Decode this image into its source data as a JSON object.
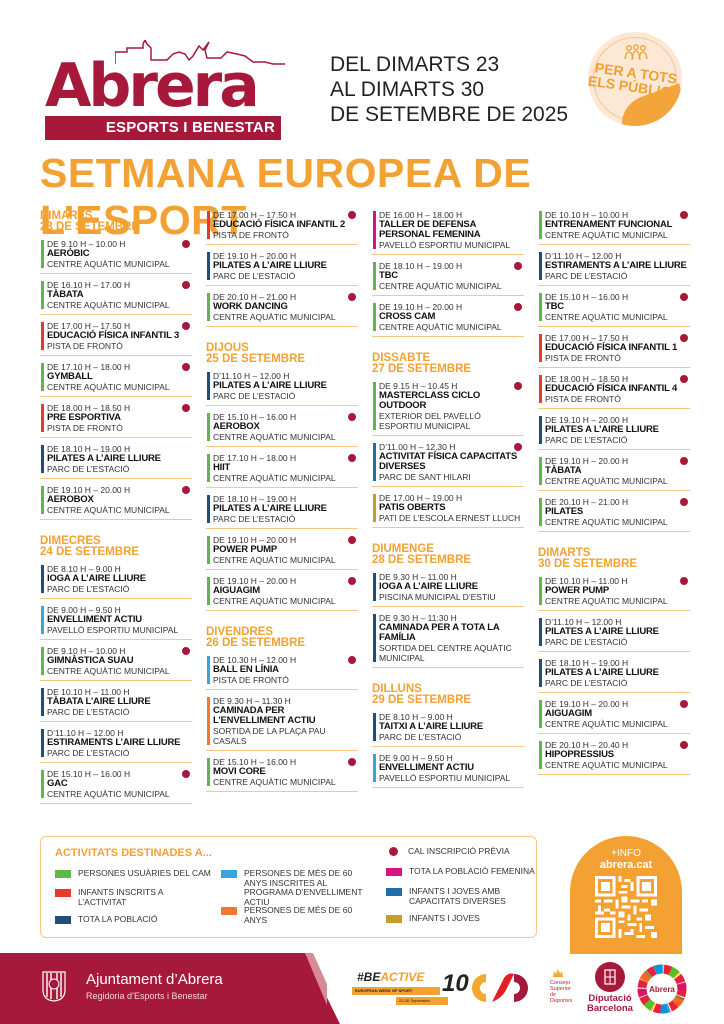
{
  "header": {
    "logo_word": "Abrera",
    "logo_subtitle": "ESPORTS I BENESTAR",
    "dates": [
      "DEL DIMARTS 23",
      "AL DIMARTS 30",
      "DE SETEMBRE DE 2025"
    ],
    "sticker_lines": [
      "PER A TOTS",
      "ELS PÚBLICS"
    ],
    "sticker_icon": "people-group-icon",
    "title": "SETMANA EUROPEA DE L’ESPORT"
  },
  "colors": {
    "brand": "#a6193a",
    "accent": "#f3a132",
    "cam_users": "#5cb947",
    "children_enrolled": "#e8392f",
    "all_population": "#1f4e79",
    "seniors_program": "#3aa4dc",
    "seniors": "#f07832",
    "registration_dot": "#a6193a",
    "women": "#d6127e",
    "diverse_abilities": "#1f6ea8",
    "children_youth": "#c99a2e"
  },
  "columns": [
    {
      "blocks": [
        {
          "day": "DIMARTS",
          "date": "23 DE SETEMBRE",
          "events": [
            {
              "time": "DE 9.10 H – 10.00 H",
              "name": "AERÒBIC",
              "place": "CENTRE AQUÀTIC MUNICIPAL",
              "color": "#5cb947",
              "registration": true
            },
            {
              "time": "DE 16.10 H – 17.00 H",
              "name": "TÀBATA",
              "place": "CENTRE AQUÀTIC MUNICIPAL",
              "color": "#5cb947",
              "registration": true
            },
            {
              "time": "DE 17.00 H – 17.50 H",
              "name": "EDUCACIÓ FÍSICA INFANTIL 3",
              "place": "PISTA DE FRONTÓ",
              "color": "#e8392f",
              "registration": true
            },
            {
              "time": "DE 17.10 H – 18.00 H",
              "name": "GYMBALL",
              "place": "CENTRE AQUÀTIC MUNICIPAL",
              "color": "#5cb947",
              "registration": true
            },
            {
              "time": "DE 18.00 H – 18.50 H",
              "name": "PRE ESPORTIVA",
              "place": "PISTA DE FRONTÓ",
              "color": "#e8392f",
              "registration": true
            },
            {
              "time": "DE 18.10 H – 19.00 H",
              "name": "PILATES A L’AIRE LLIURE",
              "place": "PARC DE L’ESTACIÓ",
              "color": "#1f4e79",
              "registration": false
            },
            {
              "time": "DE 19.10 H – 20.00 H",
              "name": "AEROBOX",
              "place": "CENTRE AQUÀTIC MUNICIPAL",
              "color": "#5cb947",
              "registration": true
            }
          ]
        },
        {
          "day": "DIMECRES",
          "date": "24 DE SETEMBRE",
          "events": [
            {
              "time": "DE 8.10 H – 9.00 H",
              "name": "IOGA A L’AIRE LLIURE",
              "place": "PARC DE L’ESTACIÓ",
              "color": "#1f4e79",
              "registration": false
            },
            {
              "time": "DE 9.00 H – 9.50 H",
              "name": "ENVELLIMENT ACTIU",
              "place": "PAVELLÓ ESPORTIU MUNICIPAL",
              "color": "#3aa4dc",
              "registration": false
            },
            {
              "time": "DE 9.10 H – 10.00 H",
              "name": "GIMNÀSTICA SUAU",
              "place": "CENTRE AQUÀTIC MUNICIPAL",
              "color": "#5cb947",
              "registration": true
            },
            {
              "time": "DE 10.10 H – 11.00 H",
              "name": "TÀBATA L’AIRE LLIURE",
              "place": "PARC DE L’ESTACIÓ",
              "color": "#1f4e79",
              "registration": false
            },
            {
              "time": "D’11.10 H – 12.00 H",
              "name": "ESTIRAMENTS L’AIRE LLIURE",
              "place": "PARC DE L’ESTACIÓ",
              "color": "#1f4e79",
              "registration": false
            },
            {
              "time": "DE 15.10 H – 16.00 H",
              "name": "GAC",
              "place": "CENTRE AQUÀTIC MUNICIPAL",
              "color": "#5cb947",
              "registration": true
            }
          ]
        }
      ]
    },
    {
      "blocks": [
        {
          "day": "",
          "date": "",
          "events": [
            {
              "time": "DE 17.00 H – 17.50 H",
              "name": "EDUCACIÓ FÍSICA INFANTIL 2",
              "place": "PISTA DE FRONTÓ",
              "color": "#e8392f",
              "registration": true
            },
            {
              "time": "DE 19.10 H – 20.00 H",
              "name": "PILATES A L’AIRE LLIURE",
              "place": "PARC DE L’ESTACIÓ",
              "color": "#1f4e79",
              "registration": false
            },
            {
              "time": "DE 20.10 H – 21.00 H",
              "name": "WORK DANCING",
              "place": "CENTRE AQUÀTIC MUNICIPAL",
              "color": "#5cb947",
              "registration": true
            }
          ]
        },
        {
          "day": "DIJOUS",
          "date": "25 DE SETEMBRE",
          "events": [
            {
              "time": "D’11.10 H – 12.00 H",
              "name": "PILATES A L’AIRE LLIURE",
              "place": "PARC DE L’ESTACIÓ",
              "color": "#1f4e79",
              "registration": false
            },
            {
              "time": "DE 15.10 H – 16.00 H",
              "name": "AEROBOX",
              "place": "CENTRE AQUÀTIC MUNICIPAL",
              "color": "#5cb947",
              "registration": true
            },
            {
              "time": "DE 17.10 H – 18.00 H",
              "name": "HIIT",
              "place": "CENTRE AQUÀTIC MUNICIPAL",
              "color": "#5cb947",
              "registration": true
            },
            {
              "time": "DE 18.10 H – 19.00 H",
              "name": "PILATES A L’AIRE LLIURE",
              "place": "PARC DE L’ESTACIÓ",
              "color": "#1f4e79",
              "registration": false
            },
            {
              "time": "DE 19.10 H – 20.00 H",
              "name": "POWER PUMP",
              "place": "CENTRE AQUÀTIC MUNICIPAL",
              "color": "#5cb947",
              "registration": true
            },
            {
              "time": "DE 19.10 H – 20.00 H",
              "name": "AIGUAGIM",
              "place": "CENTRE AQUÀTIC MUNICIPAL",
              "color": "#5cb947",
              "registration": true
            }
          ]
        },
        {
          "day": "DIVENDRES",
          "date": "26 DE SETEMBRE",
          "events": [
            {
              "time": "DE 10.30 H – 12.00 H",
              "name": "BALL EN LÍNIA",
              "place": "PISTA DE FRONTÓ",
              "color": "#3aa4dc",
              "registration": true
            },
            {
              "time": "DE 9.30 H – 11.30 H",
              "name": "CAMINADA PER L’ENVELLIMENT ACTIU",
              "place": "SORTIDA DE LA PLAÇA PAU CASALS",
              "color": "#f07832",
              "registration": false
            },
            {
              "time": "DE 15.10 H – 16.00 H",
              "name": "MOVI CORE",
              "place": "CENTRE AQUÀTIC MUNICIPAL",
              "color": "#5cb947",
              "registration": true
            }
          ]
        }
      ]
    },
    {
      "blocks": [
        {
          "day": "",
          "date": "",
          "events": [
            {
              "time": "DE 16.00 H – 18.00 H",
              "name": "TALLER DE DEFENSA PERSONAL FEMENINA",
              "place": "PAVELLÓ ESPORTIU MUNICIPAL",
              "color": "#d6127e",
              "registration": false
            },
            {
              "time": "DE 18.10 H – 19.00 H",
              "name": "TBC",
              "place": "CENTRE AQUÀTIC MUNICIPAL",
              "color": "#5cb947",
              "registration": true
            },
            {
              "time": "DE 19.10 H – 20.00 H",
              "name": "CROSS CAM",
              "place": "CENTRE AQUÀTIC MUNICIPAL",
              "color": "#5cb947",
              "registration": true
            }
          ]
        },
        {
          "day": "DISSABTE",
          "date": "27 DE SETEMBRE",
          "events": [
            {
              "time": "DE 9.15 H – 10.45 H",
              "name": "MASTERCLASS CICLO OUTDOOR",
              "place": "EXTERIOR DEL PAVELLÓ ESPORTIU MUNICIPAL",
              "color": "#5cb947",
              "registration": true
            },
            {
              "time": "D’11.00 H – 12.30 H",
              "name": "ACTIVITAT FÍSICA CAPACITATS DIVERSES",
              "place": "PARC DE SANT HILARI",
              "color": "#1f6ea8",
              "registration": true
            },
            {
              "time": "DE 17.00 H – 19.00 H",
              "name": "PATIS OBERTS",
              "place": "PATI DE L’ESCOLA ERNEST LLUCH",
              "color": "#c99a2e",
              "registration": false
            }
          ]
        },
        {
          "day": "DIUMENGE",
          "date": "28 DE SETEMBRE",
          "events": [
            {
              "time": "DE 9.30 H – 11.00 H",
              "name": "IOGA A L’AIRE LLIURE",
              "place": "PISCINA MUNICIPAL D’ESTIU",
              "color": "#1f4e79",
              "registration": false
            },
            {
              "time": "DE 9.30 H – 11:30 H",
              "name": "CAMINADA PER A TOTA LA FAMÍLIA",
              "place": "SORTIDA DEL CENTRE AQUÀTIC MUNICIPAL",
              "color": "#1f4e79",
              "registration": false
            }
          ]
        },
        {
          "day": "DILLUNS",
          "date": "29 DE SETEMBRE",
          "events": [
            {
              "time": "DE 8.10 H – 9.00 H",
              "name": "TAITXI A L’AIRE LLIURE",
              "place": "PARC DE L’ESTACIÓ",
              "color": "#1f4e79",
              "registration": false
            },
            {
              "time": "DE 9.00 H – 9.50 H",
              "name": "ENVELLIMENT ACTIU",
              "place": "PAVELLÓ ESPORTIU MUNICIPAL",
              "color": "#3aa4dc",
              "registration": false
            }
          ]
        }
      ]
    },
    {
      "blocks": [
        {
          "day": "",
          "date": "",
          "events": [
            {
              "time": "DE 10.10 H – 10.00 H",
              "name": "ENTRENAMENT FUNCIONAL",
              "place": "CENTRE AQUÀTIC MUNICIPAL",
              "color": "#5cb947",
              "registration": true
            },
            {
              "time": "D’11.10 H – 12.00 H",
              "name": "ESTIRAMENTS A L’AIRE LLIURE",
              "place": "PARC DE L’ESTACIÓ",
              "color": "#1f4e79",
              "registration": false
            },
            {
              "time": "DE 15.10 H – 16.00 H",
              "name": "TBC",
              "place": "CENTRE AQUÀTIC MUNICIPAL",
              "color": "#5cb947",
              "registration": true
            },
            {
              "time": "DE 17.00 H – 17.50 H",
              "name": "EDUCACIÓ FÍSICA INFANTIL 1",
              "place": "PISTA DE FRONTÓ",
              "color": "#e8392f",
              "registration": true
            },
            {
              "time": "DE 18.00 H – 18.50 H",
              "name": "EDUCACIÓ FÍSICA INFANTIL 4",
              "place": "PISTA DE FRONTÓ",
              "color": "#e8392f",
              "registration": true
            },
            {
              "time": "DE 19.10 H – 20.00 H",
              "name": "PILATES A L’AIRE LLIURE",
              "place": "PARC DE L’ESTACIÓ",
              "color": "#1f4e79",
              "registration": false
            },
            {
              "time": "DE 19.10 H – 20.00 H",
              "name": "TÀBATA",
              "place": "CENTRE AQUÀTIC MUNICIPAL",
              "color": "#5cb947",
              "registration": true
            },
            {
              "time": "DE 20.10 H – 21.00 H",
              "name": "PILATES",
              "place": "CENTRE AQUÀTIC MUNICIPAL",
              "color": "#5cb947",
              "registration": true
            }
          ]
        },
        {
          "day": "DIMARTS",
          "date": "30 DE SETEMBRE",
          "events": [
            {
              "time": "DE 10.10 H – 11.00 H",
              "name": "POWER PUMP",
              "place": "CENTRE AQUÀTIC MUNICIPAL",
              "color": "#5cb947",
              "registration": true
            },
            {
              "time": "D’11.10 H – 12.00 H",
              "name": "PILATES A L’AIRE LLIURE",
              "place": "PARC DE L’ESTACIÓ",
              "color": "#1f4e79",
              "registration": false
            },
            {
              "time": "DE 18.10 H – 19.00 H",
              "name": "PILATES A L’AIRE LLIURE",
              "place": "PARC DE L’ESTACIÓ",
              "color": "#1f4e79",
              "registration": false
            },
            {
              "time": "DE 19.10 H – 20.00 H",
              "name": "AIGUAGIM",
              "place": "CENTRE AQUÀTIC MUNICIPAL",
              "color": "#5cb947",
              "registration": true
            },
            {
              "time": "DE 20.10 H – 20.40 H",
              "name": "HIPOPRESSIUS",
              "place": "CENTRE AQUÀTIC MUNICIPAL",
              "color": "#5cb947",
              "registration": true
            }
          ]
        }
      ]
    }
  ],
  "legend": {
    "title": "ACTIVITATS DESTINADES A...",
    "items": [
      {
        "label": "PERSONES USUÀRIES DEL CAM",
        "color": "#5cb947"
      },
      {
        "label": "INFANTS INSCRITS A L’ACTIVITAT",
        "color": "#e8392f"
      },
      {
        "label": "TOTA LA POBLACIÓ",
        "color": "#1f4e79"
      },
      {
        "label": "PERSONES DE MÉS DE 60 ANYS INSCRITES AL PROGRAMA D’ENVELLIMENT ACTIU",
        "color": "#3aa4dc"
      },
      {
        "label": "PERSONES DE MÉS DE 60 ANYS",
        "color": "#f07832"
      },
      {
        "label": "CAL INSCRIPCIÓ PRÈVIA",
        "color": "#a6193a"
      },
      {
        "label": "TOTA LA POBLACIÓ FEMENINA",
        "color": "#d6127e"
      },
      {
        "label": "INFANTS I JOVES AMB CAPACITATS DIVERSES",
        "color": "#1f6ea8"
      },
      {
        "label": "INFANTS I JOVES",
        "color": "#c99a2e"
      }
    ]
  },
  "info": {
    "plus": "+INFO",
    "site": "abrera.cat"
  },
  "footer": {
    "org_name": "Ajuntament d’Abrera",
    "org_sub": "Regidoria d’Esports i Benestar",
    "beactive_prefix": "#BE",
    "beactive_suffix": "ACTIVE",
    "beactive_ribbon": "EUROPEAN WEEK OF SPORT",
    "beactive_dates": "23-30 September",
    "beactive_years": "10",
    "csd_lines": [
      "Consejo",
      "Superior",
      "de Deportes"
    ],
    "dipu_lines": [
      "Diputació",
      "Barcelona"
    ],
    "ods_label": "Abrera"
  }
}
